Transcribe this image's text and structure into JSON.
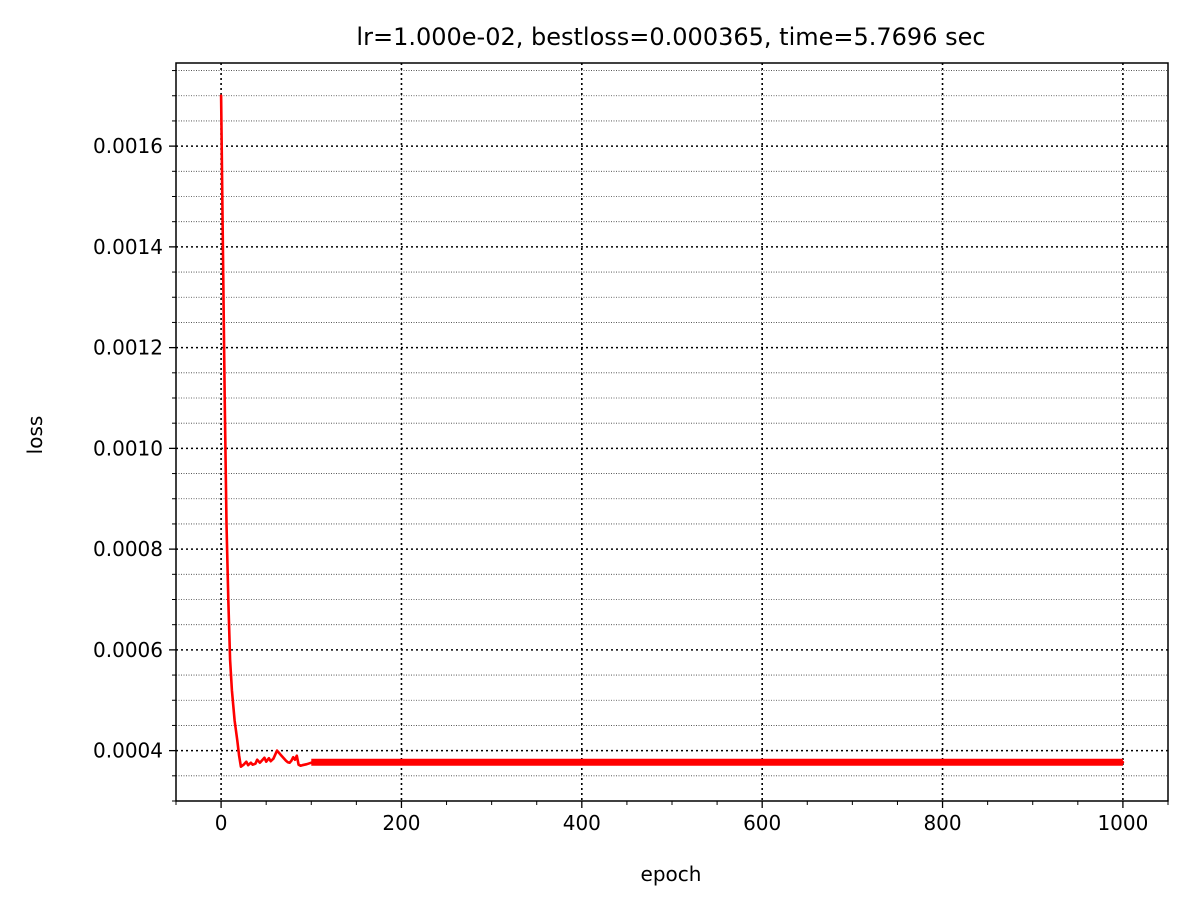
{
  "chart_data": {
    "type": "line",
    "title": "lr=1.000e-02, bestloss=0.000365, time=5.7696 sec",
    "xlabel": "epoch",
    "ylabel": "loss",
    "xlim": [
      -50,
      1050
    ],
    "ylim": [
      0.0003,
      0.001765
    ],
    "x_ticks": [
      0,
      200,
      400,
      600,
      800,
      1000
    ],
    "x_tick_labels": [
      "0",
      "200",
      "400",
      "600",
      "800",
      "1000"
    ],
    "y_ticks": [
      0.0004,
      0.0006,
      0.0008,
      0.001,
      0.0012,
      0.0014,
      0.0016
    ],
    "y_tick_labels": [
      "0.0004",
      "0.0006",
      "0.0008",
      "0.0010",
      "0.0012",
      "0.0014",
      "0.0016"
    ],
    "x_minor_step": 50,
    "y_minor_step": 5e-05,
    "grid": true,
    "series": [
      {
        "name": "loss",
        "color": "#ff0000",
        "x": [
          0,
          2,
          4,
          6,
          8,
          10,
          12,
          15,
          18,
          20,
          22,
          25,
          28,
          30,
          33,
          35,
          38,
          40,
          43,
          45,
          48,
          50,
          53,
          55,
          58,
          60,
          62,
          64,
          66,
          68,
          70,
          72,
          74,
          76,
          78,
          80,
          82,
          84,
          86,
          88,
          90,
          95,
          100,
          110,
          120,
          130,
          140,
          150,
          160,
          170,
          180,
          190,
          200,
          250,
          300,
          400,
          500,
          600,
          700,
          800,
          900,
          1000
        ],
        "values": [
          0.0017,
          0.0014,
          0.0011,
          0.00085,
          0.0007,
          0.00058,
          0.00052,
          0.00046,
          0.00042,
          0.00039,
          0.000368,
          0.000372,
          0.000378,
          0.000371,
          0.000376,
          0.000372,
          0.000374,
          0.000382,
          0.000376,
          0.00038,
          0.000386,
          0.000378,
          0.000385,
          0.000379,
          0.000384,
          0.000392,
          0.0004,
          0.000396,
          0.000392,
          0.000388,
          0.000384,
          0.00038,
          0.000377,
          0.000376,
          0.00038,
          0.000387,
          0.000382,
          0.00039,
          0.000372,
          0.00037,
          0.000371,
          0.000373,
          0.000376,
          0.000378,
          0.000377,
          0.000377,
          0.000376,
          0.000377,
          0.000377,
          0.000377,
          0.000376,
          0.000377,
          0.000377,
          0.000376,
          0.000377,
          0.000377,
          0.000377,
          0.000377,
          0.000377,
          0.000377,
          0.000377,
          0.000377
        ]
      }
    ]
  }
}
